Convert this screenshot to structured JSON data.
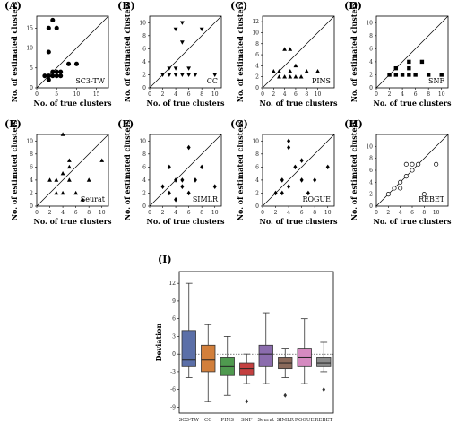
{
  "chart_data": [
    {
      "type": "scatter",
      "panel": "(A)",
      "method": "SC3-TW",
      "marker": "circle",
      "filled": true,
      "xlabel": "No. of true clusters",
      "ylabel": "No. of estimated clusters",
      "xlim": [
        0,
        18
      ],
      "ylim": [
        0,
        18
      ],
      "xticks": [
        0,
        5,
        10,
        15
      ],
      "yticks": [
        0,
        5,
        10,
        15
      ],
      "points": [
        [
          2,
          3
        ],
        [
          3,
          2
        ],
        [
          3,
          3
        ],
        [
          3,
          9
        ],
        [
          3,
          15
        ],
        [
          4,
          17
        ],
        [
          4,
          3
        ],
        [
          4,
          4
        ],
        [
          5,
          4
        ],
        [
          5,
          15
        ],
        [
          5,
          3
        ],
        [
          6,
          3
        ],
        [
          6,
          4
        ],
        [
          8,
          6
        ],
        [
          10,
          6
        ]
      ]
    },
    {
      "type": "scatter",
      "panel": "(B)",
      "method": "CC",
      "marker": "triangle-down",
      "filled": true,
      "xlabel": "No. of true clusters",
      "ylabel": "No. of estimated clusters",
      "xlim": [
        0,
        11
      ],
      "ylim": [
        0,
        11
      ],
      "xticks": [
        0,
        2,
        4,
        6,
        8,
        10
      ],
      "yticks": [
        0,
        2,
        4,
        6,
        8,
        10
      ],
      "points": [
        [
          2,
          2
        ],
        [
          3,
          2
        ],
        [
          3,
          3
        ],
        [
          4,
          2
        ],
        [
          4,
          3
        ],
        [
          4,
          9
        ],
        [
          5,
          10
        ],
        [
          5,
          7
        ],
        [
          5,
          2
        ],
        [
          6,
          3
        ],
        [
          6,
          2
        ],
        [
          7,
          2
        ],
        [
          8,
          9
        ],
        [
          10,
          2
        ]
      ]
    },
    {
      "type": "scatter",
      "panel": "(C)",
      "method": "PINS",
      "marker": "triangle-up",
      "filled": true,
      "xlabel": "No. of true clusters",
      "ylabel": "No. of estimated clusters",
      "xlim": [
        0,
        13
      ],
      "ylim": [
        0,
        13
      ],
      "xticks": [
        0,
        2,
        4,
        6,
        8,
        10
      ],
      "yticks": [
        0,
        2,
        4,
        6,
        8,
        10,
        12
      ],
      "points": [
        [
          2,
          3
        ],
        [
          3,
          2
        ],
        [
          3,
          3
        ],
        [
          4,
          2
        ],
        [
          4,
          7
        ],
        [
          5,
          7
        ],
        [
          5,
          2
        ],
        [
          5,
          3
        ],
        [
          6,
          4
        ],
        [
          6,
          2
        ],
        [
          7,
          2
        ],
        [
          8,
          3
        ],
        [
          10,
          3
        ]
      ]
    },
    {
      "type": "scatter",
      "panel": "(D)",
      "method": "SNF",
      "marker": "square",
      "filled": true,
      "xlabel": "No. of true clusters",
      "ylabel": "No. of estimated clusters",
      "xlim": [
        0,
        11
      ],
      "ylim": [
        0,
        11
      ],
      "xticks": [
        0,
        2,
        4,
        6,
        8,
        10
      ],
      "yticks": [
        0,
        2,
        4,
        6,
        8,
        10
      ],
      "points": [
        [
          2,
          2
        ],
        [
          3,
          2
        ],
        [
          3,
          3
        ],
        [
          4,
          2
        ],
        [
          5,
          2
        ],
        [
          5,
          3
        ],
        [
          5,
          4
        ],
        [
          6,
          2
        ],
        [
          7,
          4
        ],
        [
          8,
          2
        ],
        [
          10,
          2
        ]
      ]
    },
    {
      "type": "scatter",
      "panel": "(E)",
      "method": "Seurat",
      "marker": "triangle-up",
      "filled": true,
      "xlabel": "No. of true clusters",
      "ylabel": "No. of estimated clusters",
      "xlim": [
        0,
        11
      ],
      "ylim": [
        0,
        11
      ],
      "xticks": [
        0,
        2,
        4,
        6,
        8,
        10
      ],
      "yticks": [
        0,
        2,
        4,
        6,
        8,
        10
      ],
      "points": [
        [
          2,
          4
        ],
        [
          3,
          2
        ],
        [
          3,
          4
        ],
        [
          4,
          5
        ],
        [
          4,
          11
        ],
        [
          4,
          2
        ],
        [
          5,
          6
        ],
        [
          5,
          7
        ],
        [
          5,
          4
        ],
        [
          6,
          2
        ],
        [
          7,
          1
        ],
        [
          8,
          4
        ],
        [
          10,
          7
        ]
      ]
    },
    {
      "type": "scatter",
      "panel": "(F)",
      "method": "SIMLR",
      "marker": "diamond",
      "filled": true,
      "xlabel": "No. of true clusters",
      "ylabel": "No. of estimated clusters",
      "xlim": [
        0,
        11
      ],
      "ylim": [
        0,
        11
      ],
      "xticks": [
        0,
        2,
        4,
        6,
        8,
        10
      ],
      "yticks": [
        0,
        2,
        4,
        6,
        8,
        10
      ],
      "points": [
        [
          2,
          3
        ],
        [
          3,
          2
        ],
        [
          3,
          6
        ],
        [
          4,
          4
        ],
        [
          4,
          1
        ],
        [
          5,
          3
        ],
        [
          5,
          4
        ],
        [
          6,
          2
        ],
        [
          6,
          9
        ],
        [
          7,
          4
        ],
        [
          8,
          6
        ],
        [
          10,
          3
        ]
      ]
    },
    {
      "type": "scatter",
      "panel": "(G)",
      "method": "ROGUE",
      "marker": "diamond",
      "filled": true,
      "xlabel": "No. of true clusters",
      "ylabel": "No. of estimated clusters",
      "xlim": [
        0,
        11
      ],
      "ylim": [
        0,
        11
      ],
      "xticks": [
        0,
        2,
        4,
        6,
        8,
        10
      ],
      "yticks": [
        0,
        2,
        4,
        6,
        8,
        10
      ],
      "points": [
        [
          2,
          2
        ],
        [
          3,
          2
        ],
        [
          3,
          4
        ],
        [
          4,
          10
        ],
        [
          4,
          9
        ],
        [
          4,
          3
        ],
        [
          5,
          6
        ],
        [
          6,
          4
        ],
        [
          6,
          7
        ],
        [
          7,
          2
        ],
        [
          8,
          4
        ],
        [
          10,
          6
        ]
      ]
    },
    {
      "type": "scatter",
      "panel": "(H)",
      "method": "REBET",
      "marker": "circle",
      "filled": false,
      "xlabel": "No. of true clusters",
      "ylabel": "No. of estimated clusters",
      "xlim": [
        0,
        12
      ],
      "ylim": [
        0,
        12
      ],
      "xticks": [
        0,
        2,
        4,
        6,
        8,
        10
      ],
      "yticks": [
        0,
        2,
        4,
        6,
        8,
        10
      ],
      "points": [
        [
          2,
          2
        ],
        [
          3,
          3
        ],
        [
          4,
          4
        ],
        [
          4,
          3
        ],
        [
          5,
          5
        ],
        [
          5,
          7
        ],
        [
          6,
          6
        ],
        [
          6,
          7
        ],
        [
          7,
          7
        ],
        [
          8,
          2
        ],
        [
          10,
          7
        ]
      ]
    },
    {
      "type": "box",
      "panel": "(I)",
      "ylabel": "Deviation",
      "ylim": [
        -10,
        14
      ],
      "yticks": [
        -9,
        -6,
        -3,
        0,
        3,
        6,
        9,
        12
      ],
      "categories": [
        "SC3-TW",
        "CC",
        "PINS",
        "SNF",
        "Seurat",
        "SIMLR",
        "ROGUE",
        "REBET"
      ],
      "colors": [
        "#5b6fa8",
        "#d27f3b",
        "#4f9a4f",
        "#c44040",
        "#8b6cad",
        "#8b6a5a",
        "#d58ac0",
        "#8c8c8c"
      ],
      "boxes": [
        {
          "whisker_low": -4,
          "q1": -2,
          "median": -1,
          "q3": 4,
          "whisker_high": 12,
          "outliers": []
        },
        {
          "whisker_low": -8,
          "q1": -3,
          "median": -1,
          "q3": 1.5,
          "whisker_high": 5,
          "outliers": []
        },
        {
          "whisker_low": -7,
          "q1": -3.5,
          "median": -2,
          "q3": -0.5,
          "whisker_high": 3,
          "outliers": []
        },
        {
          "whisker_low": -5,
          "q1": -3.5,
          "median": -2.5,
          "q3": -1.5,
          "whisker_high": 0,
          "outliers": [
            -8
          ]
        },
        {
          "whisker_low": -5,
          "q1": -2,
          "median": 0,
          "q3": 1.5,
          "whisker_high": 7,
          "outliers": []
        },
        {
          "whisker_low": -4,
          "q1": -2.5,
          "median": -1.5,
          "q3": -0.5,
          "whisker_high": 1,
          "outliers": [
            -7
          ]
        },
        {
          "whisker_low": -5,
          "q1": -2,
          "median": -0.5,
          "q3": 1,
          "whisker_high": 6,
          "outliers": []
        },
        {
          "whisker_low": -3,
          "q1": -2,
          "median": -1.5,
          "q3": -0.5,
          "whisker_high": 2,
          "outliers": [
            -6
          ]
        }
      ]
    }
  ]
}
